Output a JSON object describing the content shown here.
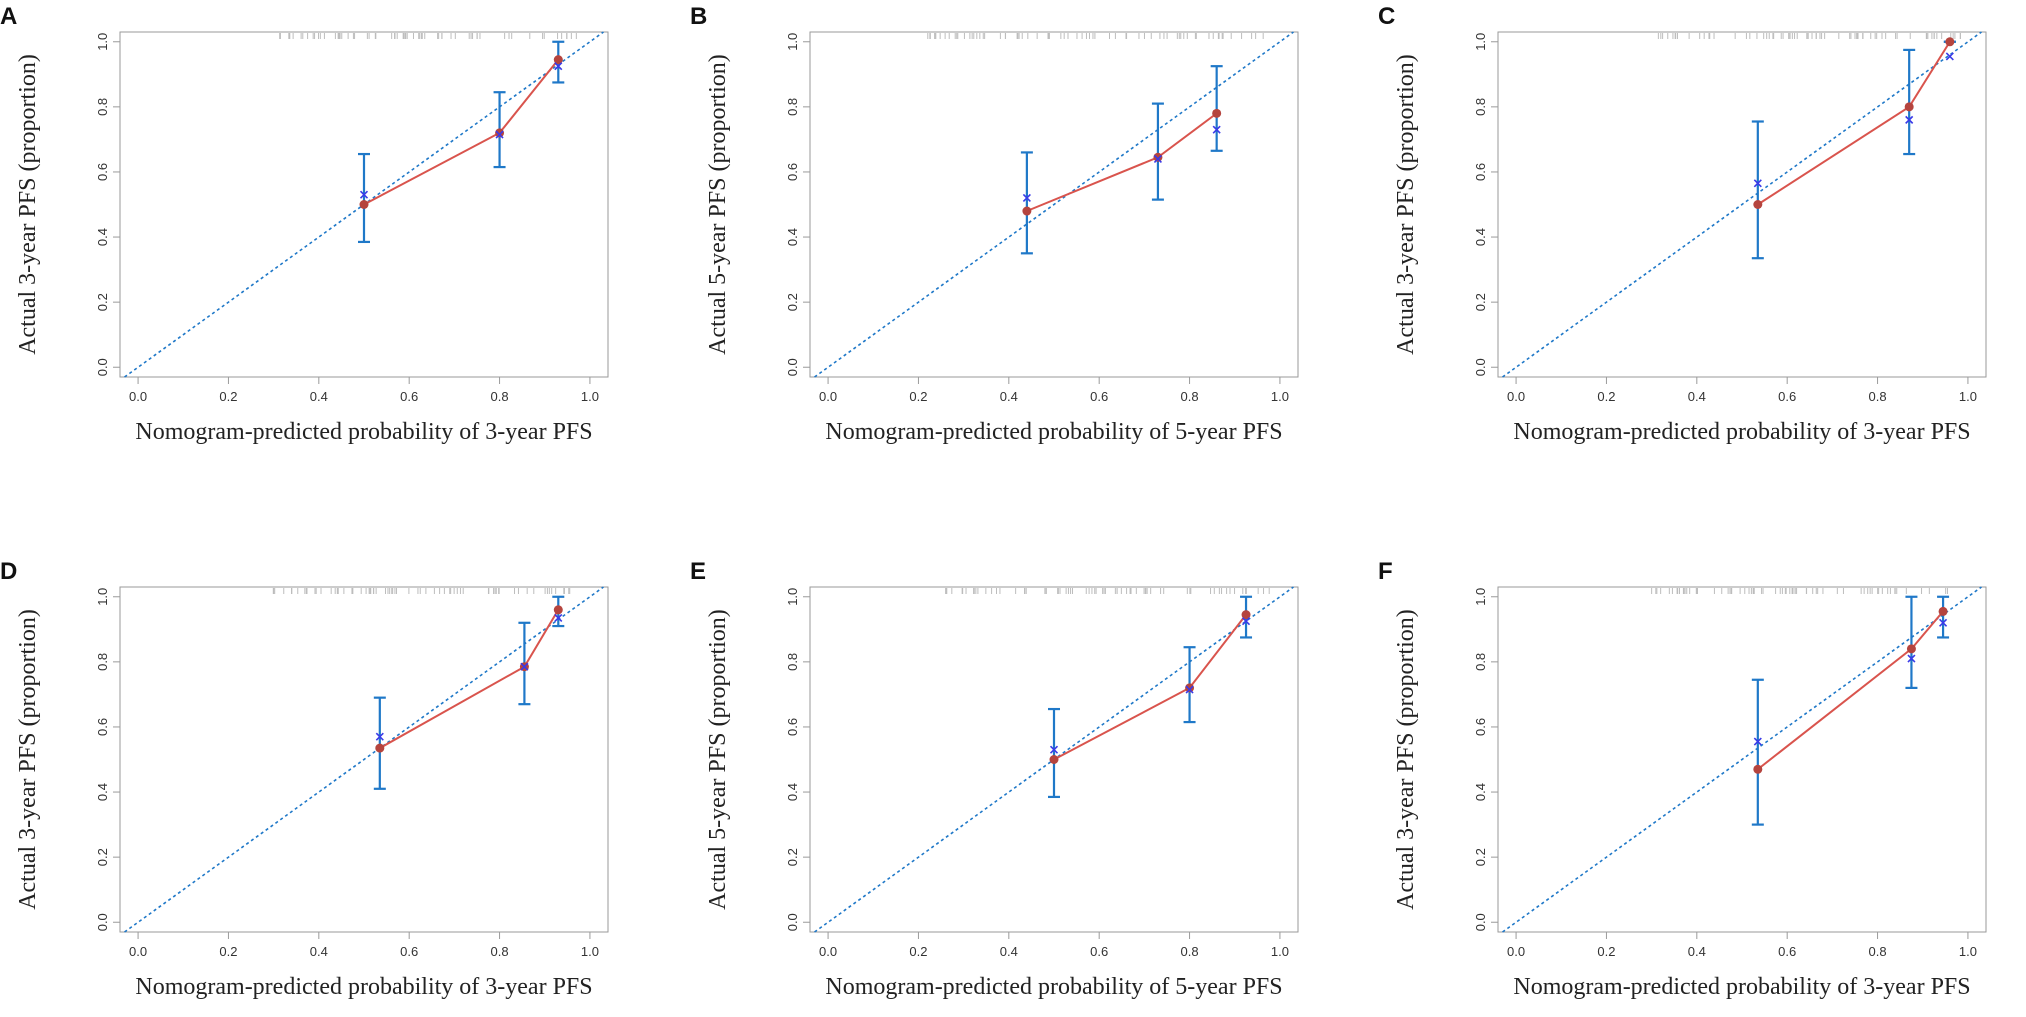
{
  "figure": {
    "colors": {
      "ideal": "#1f78c8",
      "apparent": "#d9544d",
      "point": "#b5443e",
      "errorbar": "#1f78c8",
      "corrected": "#3a3ae8",
      "rug": "#bdbdbd",
      "frame": "#9a9a9a"
    }
  },
  "chart_data": [
    {
      "panel": "A",
      "type": "scatter",
      "xlabel": "Nomogram-predicted probability of 3-year PFS",
      "ylabel": "Actual 3-year PFS (proportion)",
      "xlim": [
        -0.04,
        1.04
      ],
      "ylim": [
        -0.03,
        1.03
      ],
      "ticks": [
        0.0,
        0.2,
        0.4,
        0.6,
        0.8,
        1.0
      ],
      "tick_labels": [
        "0.0",
        "0.2",
        "0.4",
        "0.6",
        "0.8",
        "1.0"
      ],
      "points": [
        {
          "x": 0.5,
          "y": 0.5,
          "lo": 0.385,
          "hi": 0.655,
          "xc": 0.5,
          "yc": 0.53
        },
        {
          "x": 0.8,
          "y": 0.72,
          "lo": 0.615,
          "hi": 0.845,
          "xc": 0.8,
          "yc": 0.715
        },
        {
          "x": 0.93,
          "y": 0.945,
          "lo": 0.875,
          "hi": 1.0,
          "xc": 0.93,
          "yc": 0.925
        }
      ],
      "rug_range": [
        0.28,
        0.98
      ]
    },
    {
      "panel": "B",
      "type": "scatter",
      "xlabel": "Nomogram-predicted probability of 5-year PFS",
      "ylabel": "Actual 5-year PFS (proportion)",
      "xlim": [
        -0.04,
        1.04
      ],
      "ylim": [
        -0.03,
        1.03
      ],
      "ticks": [
        0.0,
        0.2,
        0.4,
        0.6,
        0.8,
        1.0
      ],
      "tick_labels": [
        "0.0",
        "0.2",
        "0.4",
        "0.6",
        "0.8",
        "1.0"
      ],
      "points": [
        {
          "x": 0.44,
          "y": 0.48,
          "lo": 0.35,
          "hi": 0.66,
          "xc": 0.44,
          "yc": 0.52
        },
        {
          "x": 0.73,
          "y": 0.645,
          "lo": 0.515,
          "hi": 0.81,
          "xc": 0.73,
          "yc": 0.64
        },
        {
          "x": 0.86,
          "y": 0.78,
          "lo": 0.665,
          "hi": 0.925,
          "xc": 0.86,
          "yc": 0.73
        }
      ],
      "rug_range": [
        0.22,
        0.97
      ]
    },
    {
      "panel": "C",
      "type": "scatter",
      "xlabel": "Nomogram-predicted probability of 3-year PFS",
      "ylabel": "Actual 3-year PFS (proportion)",
      "xlim": [
        -0.04,
        1.04
      ],
      "ylim": [
        -0.03,
        1.03
      ],
      "ticks": [
        0.0,
        0.2,
        0.4,
        0.6,
        0.8,
        1.0
      ],
      "tick_labels": [
        "0.0",
        "0.2",
        "0.4",
        "0.6",
        "0.8",
        "1.0"
      ],
      "points": [
        {
          "x": 0.535,
          "y": 0.5,
          "lo": 0.335,
          "hi": 0.755,
          "xc": 0.535,
          "yc": 0.565
        },
        {
          "x": 0.87,
          "y": 0.8,
          "lo": 0.655,
          "hi": 0.975,
          "xc": 0.87,
          "yc": 0.76
        },
        {
          "x": 0.96,
          "y": 1.0,
          "lo": 1.0,
          "hi": 1.0,
          "xc": 0.96,
          "yc": 0.955
        }
      ],
      "rug_range": [
        0.3,
        0.99
      ]
    },
    {
      "panel": "D",
      "type": "scatter",
      "xlabel": "Nomogram-predicted probability of 3-year PFS",
      "ylabel": "Actual 3-year PFS (proportion)",
      "xlim": [
        -0.04,
        1.04
      ],
      "ylim": [
        -0.03,
        1.03
      ],
      "ticks": [
        0.0,
        0.2,
        0.4,
        0.6,
        0.8,
        1.0
      ],
      "tick_labels": [
        "0.0",
        "0.2",
        "0.4",
        "0.6",
        "0.8",
        "1.0"
      ],
      "points": [
        {
          "x": 0.535,
          "y": 0.535,
          "lo": 0.41,
          "hi": 0.69,
          "xc": 0.535,
          "yc": 0.57
        },
        {
          "x": 0.855,
          "y": 0.785,
          "lo": 0.67,
          "hi": 0.92,
          "xc": 0.855,
          "yc": 0.785
        },
        {
          "x": 0.93,
          "y": 0.96,
          "lo": 0.91,
          "hi": 1.0,
          "xc": 0.93,
          "yc": 0.935
        }
      ],
      "rug_range": [
        0.28,
        0.98
      ]
    },
    {
      "panel": "E",
      "type": "scatter",
      "xlabel": "Nomogram-predicted probability of 5-year PFS",
      "ylabel": "Actual 5-year PFS (proportion)",
      "xlim": [
        -0.04,
        1.04
      ],
      "ylim": [
        -0.03,
        1.03
      ],
      "ticks": [
        0.0,
        0.2,
        0.4,
        0.6,
        0.8,
        1.0
      ],
      "tick_labels": [
        "0.0",
        "0.2",
        "0.4",
        "0.6",
        "0.8",
        "1.0"
      ],
      "points": [
        {
          "x": 0.5,
          "y": 0.5,
          "lo": 0.385,
          "hi": 0.655,
          "xc": 0.5,
          "yc": 0.53
        },
        {
          "x": 0.8,
          "y": 0.72,
          "lo": 0.615,
          "hi": 0.845,
          "xc": 0.8,
          "yc": 0.715
        },
        {
          "x": 0.925,
          "y": 0.945,
          "lo": 0.875,
          "hi": 1.0,
          "xc": 0.925,
          "yc": 0.925
        }
      ],
      "rug_range": [
        0.26,
        0.98
      ]
    },
    {
      "panel": "F",
      "type": "scatter",
      "xlabel": "Nomogram-predicted probability of 3-year PFS",
      "ylabel": "Actual 3-year PFS (proportion)",
      "xlim": [
        -0.04,
        1.04
      ],
      "ylim": [
        -0.03,
        1.03
      ],
      "ticks": [
        0.0,
        0.2,
        0.4,
        0.6,
        0.8,
        1.0
      ],
      "tick_labels": [
        "0.0",
        "0.2",
        "0.4",
        "0.6",
        "0.8",
        "1.0"
      ],
      "points": [
        {
          "x": 0.535,
          "y": 0.47,
          "lo": 0.3,
          "hi": 0.745,
          "xc": 0.535,
          "yc": 0.555
        },
        {
          "x": 0.875,
          "y": 0.84,
          "lo": 0.72,
          "hi": 1.0,
          "xc": 0.875,
          "yc": 0.81
        },
        {
          "x": 0.945,
          "y": 0.955,
          "lo": 0.875,
          "hi": 1.0,
          "xc": 0.945,
          "yc": 0.92
        }
      ],
      "rug_range": [
        0.3,
        0.99
      ]
    }
  ]
}
